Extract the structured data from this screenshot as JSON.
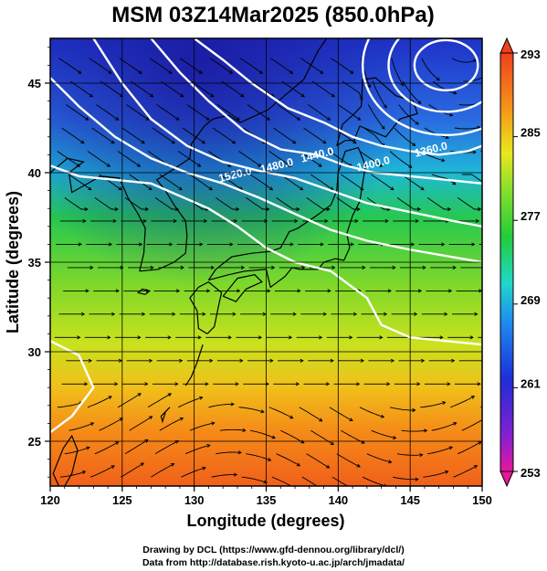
{
  "chart_data": {
    "type": "heatmap",
    "title": "MSM 03Z14Mar2025 (850.0hPa)",
    "xlabel": "Longitude (degrees)",
    "ylabel": "Latitude  (degrees)",
    "xlim": [
      120,
      150
    ],
    "ylim": [
      22.5,
      47.5
    ],
    "xticks": [
      "120",
      "125",
      "130",
      "135",
      "140",
      "145",
      "150"
    ],
    "yticks": [
      "25",
      "30",
      "35",
      "40",
      "45"
    ],
    "grid": true,
    "colorbar": {
      "range": [
        253,
        293
      ],
      "ticks": [
        "293",
        "285",
        "277",
        "269",
        "261",
        "253"
      ],
      "placement": "right"
    },
    "contours": [
      {
        "label": "1360.0",
        "lon": 146.5,
        "lat": 41.1
      },
      {
        "label": "1400.0",
        "lon": 142.5,
        "lat": 40.3
      },
      {
        "label": "1440.0",
        "lon": 138.6,
        "lat": 40.8
      },
      {
        "label": "1480.0",
        "lon": 135.8,
        "lat": 40.2
      },
      {
        "label": "1520.0",
        "lon": 132.9,
        "lat": 39.7
      }
    ]
  },
  "credits": {
    "line1": "Drawing by DCL (https://www.gfd-dennou.org/library/dcl/)",
    "line2": "Data from http://database.rish.kyoto-u.ac.jp/arch/jmadata/"
  }
}
